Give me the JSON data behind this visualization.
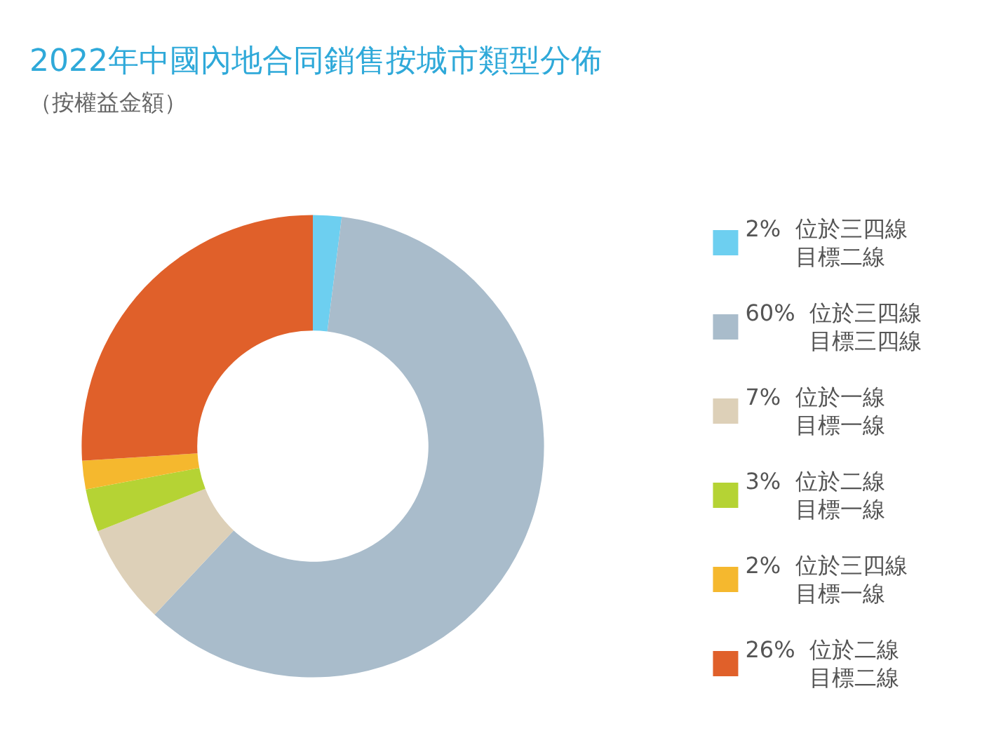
{
  "chart_data": {
    "type": "donut",
    "title": "2022年中國內地合同銷售按城市類型分佈",
    "subtitle": "（按權益金額）",
    "categories": [
      "位於三四線目標二線",
      "位於三四線目標三四線",
      "位於一線目標一線",
      "位於二線目標一線",
      "位於三四線目標一線",
      "位於二線目標二線"
    ],
    "values": [
      2,
      60,
      7,
      3,
      2,
      26
    ],
    "value_labels": [
      "2%",
      "60%",
      "7%",
      "3%",
      "2%",
      "26%"
    ],
    "colors": [
      "#6dcff0",
      "#a9bccb",
      "#ddd0b8",
      "#b5d334",
      "#f5b82e",
      "#e0602a"
    ],
    "legend": "right"
  }
}
